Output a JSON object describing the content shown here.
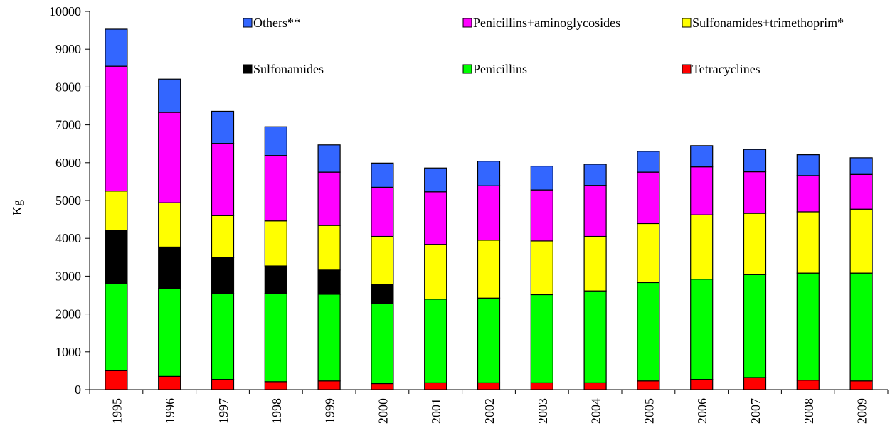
{
  "chart_data": {
    "type": "bar",
    "stacked": true,
    "ylabel": "Kg",
    "xlabel": "",
    "ylim": [
      0,
      10000
    ],
    "yticks": [
      0,
      1000,
      2000,
      3000,
      4000,
      5000,
      6000,
      7000,
      8000,
      9000,
      10000
    ],
    "grid": false,
    "legend_position": "top",
    "categories": [
      "1995",
      "1996",
      "1997",
      "1998",
      "1999",
      "2000",
      "2001",
      "2002",
      "2003",
      "2004",
      "2005",
      "2006",
      "2007",
      "2008",
      "2009"
    ],
    "series": [
      {
        "name": "Tetracyclines",
        "color": "#ff0000",
        "values": [
          500,
          350,
          270,
          210,
          230,
          160,
          180,
          180,
          180,
          180,
          230,
          270,
          320,
          250,
          230
        ]
      },
      {
        "name": "Penicillins",
        "color": "#00ff00",
        "values": [
          2300,
          2320,
          2270,
          2330,
          2290,
          2120,
          2210,
          2240,
          2330,
          2430,
          2600,
          2650,
          2720,
          2830,
          2850
        ]
      },
      {
        "name": "Sulfonamides",
        "color": "#000000",
        "values": [
          1400,
          1100,
          950,
          730,
          640,
          500,
          0,
          0,
          0,
          0,
          0,
          0,
          0,
          0,
          0
        ]
      },
      {
        "name": "Sulfonamides+trimethoprim*",
        "color": "#ffff00",
        "values": [
          1050,
          1170,
          1110,
          1190,
          1180,
          1270,
          1450,
          1530,
          1420,
          1440,
          1560,
          1700,
          1620,
          1620,
          1690
        ]
      },
      {
        "name": "Penicillins+aminoglycosides",
        "color": "#ff00ff",
        "values": [
          3300,
          2390,
          1910,
          1730,
          1410,
          1300,
          1390,
          1440,
          1350,
          1350,
          1360,
          1270,
          1100,
          960,
          920
        ]
      },
      {
        "name": "Others**",
        "color": "#3366ff",
        "values": [
          980,
          880,
          850,
          760,
          720,
          640,
          630,
          650,
          630,
          560,
          550,
          560,
          590,
          550,
          440
        ]
      }
    ],
    "legend_order": [
      "Others**",
      "Penicillins+aminoglycosides",
      "Sulfonamides+trimethoprim*",
      "Sulfonamides",
      "Penicillins",
      "Tetracyclines"
    ]
  }
}
